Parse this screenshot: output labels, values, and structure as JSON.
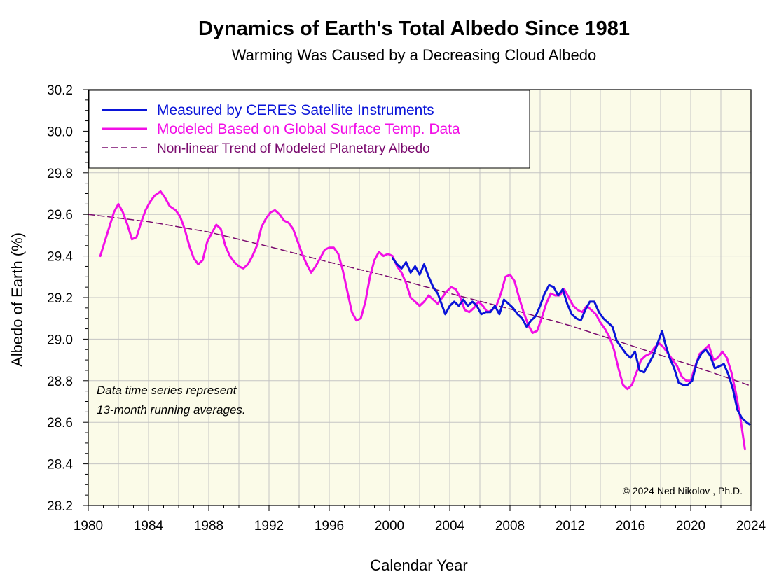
{
  "chart_data": {
    "type": "line",
    "title": "Dynamics of Earth's Total Albedo Since 1981",
    "subtitle": "Warming Was Caused by a Decreasing Cloud Albedo",
    "xlabel": "Calendar Year",
    "ylabel": "Albedo of Earth (%)",
    "xlim": [
      1980,
      2024
    ],
    "ylim": [
      28.2,
      30.2
    ],
    "x_ticks": [
      1980,
      1984,
      1988,
      1992,
      1996,
      2000,
      2004,
      2008,
      2012,
      2016,
      2020,
      2024
    ],
    "y_ticks": [
      "28.2",
      "28.4",
      "28.6",
      "28.8",
      "29.0",
      "29.2",
      "29.4",
      "29.6",
      "29.8",
      "30.0",
      "30.2"
    ],
    "grid": true,
    "legend_position": "top-left",
    "background_color": "#fbfbe8",
    "series": [
      {
        "name": "Measured by CERES Satellite Instruments",
        "color": "#0a14d8",
        "style": "solid",
        "points": [
          [
            2000.2,
            29.39
          ],
          [
            2000.5,
            29.36
          ],
          [
            2000.8,
            29.34
          ],
          [
            2001.1,
            29.37
          ],
          [
            2001.4,
            29.32
          ],
          [
            2001.7,
            29.35
          ],
          [
            2002.0,
            29.31
          ],
          [
            2002.3,
            29.36
          ],
          [
            2002.6,
            29.3
          ],
          [
            2002.9,
            29.25
          ],
          [
            2003.2,
            29.22
          ],
          [
            2003.5,
            29.16
          ],
          [
            2003.7,
            29.12
          ],
          [
            2004.0,
            29.16
          ],
          [
            2004.3,
            29.18
          ],
          [
            2004.6,
            29.16
          ],
          [
            2004.9,
            29.19
          ],
          [
            2005.2,
            29.16
          ],
          [
            2005.5,
            29.18
          ],
          [
            2005.8,
            29.16
          ],
          [
            2006.1,
            29.12
          ],
          [
            2006.4,
            29.13
          ],
          [
            2006.7,
            29.13
          ],
          [
            2007.0,
            29.16
          ],
          [
            2007.3,
            29.12
          ],
          [
            2007.6,
            29.19
          ],
          [
            2007.9,
            29.17
          ],
          [
            2008.2,
            29.15
          ],
          [
            2008.5,
            29.12
          ],
          [
            2008.8,
            29.1
          ],
          [
            2009.1,
            29.06
          ],
          [
            2009.4,
            29.09
          ],
          [
            2009.7,
            29.11
          ],
          [
            2010.0,
            29.16
          ],
          [
            2010.3,
            29.22
          ],
          [
            2010.6,
            29.26
          ],
          [
            2010.9,
            29.25
          ],
          [
            2011.2,
            29.21
          ],
          [
            2011.5,
            29.24
          ],
          [
            2011.8,
            29.17
          ],
          [
            2012.1,
            29.12
          ],
          [
            2012.4,
            29.1
          ],
          [
            2012.7,
            29.09
          ],
          [
            2013.0,
            29.14
          ],
          [
            2013.3,
            29.18
          ],
          [
            2013.6,
            29.18
          ],
          [
            2013.9,
            29.13
          ],
          [
            2014.2,
            29.1
          ],
          [
            2014.5,
            29.08
          ],
          [
            2014.8,
            29.06
          ],
          [
            2015.1,
            28.99
          ],
          [
            2015.4,
            28.96
          ],
          [
            2015.7,
            28.93
          ],
          [
            2016.0,
            28.91
          ],
          [
            2016.3,
            28.94
          ],
          [
            2016.6,
            28.85
          ],
          [
            2016.9,
            28.84
          ],
          [
            2017.2,
            28.88
          ],
          [
            2017.5,
            28.92
          ],
          [
            2017.8,
            28.98
          ],
          [
            2018.1,
            29.04
          ],
          [
            2018.3,
            28.98
          ],
          [
            2018.6,
            28.91
          ],
          [
            2018.9,
            28.86
          ],
          [
            2019.2,
            28.79
          ],
          [
            2019.5,
            28.78
          ],
          [
            2019.8,
            28.78
          ],
          [
            2020.1,
            28.8
          ],
          [
            2020.4,
            28.89
          ],
          [
            2020.7,
            28.93
          ],
          [
            2021.0,
            28.95
          ],
          [
            2021.3,
            28.92
          ],
          [
            2021.6,
            28.86
          ],
          [
            2021.9,
            28.87
          ],
          [
            2022.2,
            28.88
          ],
          [
            2022.5,
            28.83
          ],
          [
            2022.8,
            28.76
          ],
          [
            2023.1,
            28.66
          ],
          [
            2023.4,
            28.62
          ],
          [
            2023.7,
            28.6
          ],
          [
            2023.9,
            28.59
          ]
        ]
      },
      {
        "name": "Modeled Based on Global Surface Temp. Data",
        "color": "#f20fe6",
        "style": "solid",
        "points": [
          [
            1980.8,
            29.4
          ],
          [
            1981.1,
            29.47
          ],
          [
            1981.4,
            29.54
          ],
          [
            1981.7,
            29.61
          ],
          [
            1982.0,
            29.65
          ],
          [
            1982.3,
            29.61
          ],
          [
            1982.6,
            29.55
          ],
          [
            1982.9,
            29.48
          ],
          [
            1983.2,
            29.49
          ],
          [
            1983.5,
            29.56
          ],
          [
            1983.8,
            29.62
          ],
          [
            1984.1,
            29.66
          ],
          [
            1984.4,
            29.69
          ],
          [
            1984.8,
            29.71
          ],
          [
            1985.1,
            29.68
          ],
          [
            1985.4,
            29.64
          ],
          [
            1985.8,
            29.62
          ],
          [
            1986.1,
            29.59
          ],
          [
            1986.4,
            29.53
          ],
          [
            1986.7,
            29.45
          ],
          [
            1987.0,
            29.39
          ],
          [
            1987.3,
            29.36
          ],
          [
            1987.6,
            29.38
          ],
          [
            1987.9,
            29.47
          ],
          [
            1988.2,
            29.51
          ],
          [
            1988.5,
            29.55
          ],
          [
            1988.8,
            29.53
          ],
          [
            1989.1,
            29.45
          ],
          [
            1989.4,
            29.4
          ],
          [
            1989.7,
            29.37
          ],
          [
            1990.0,
            29.35
          ],
          [
            1990.3,
            29.34
          ],
          [
            1990.6,
            29.36
          ],
          [
            1990.9,
            29.4
          ],
          [
            1991.2,
            29.45
          ],
          [
            1991.5,
            29.54
          ],
          [
            1991.8,
            29.58
          ],
          [
            1992.1,
            29.61
          ],
          [
            1992.4,
            29.62
          ],
          [
            1992.7,
            29.6
          ],
          [
            1993.0,
            29.57
          ],
          [
            1993.3,
            29.56
          ],
          [
            1993.6,
            29.53
          ],
          [
            1993.9,
            29.47
          ],
          [
            1994.2,
            29.41
          ],
          [
            1994.5,
            29.36
          ],
          [
            1994.8,
            29.32
          ],
          [
            1995.1,
            29.35
          ],
          [
            1995.4,
            29.39
          ],
          [
            1995.7,
            29.43
          ],
          [
            1996.0,
            29.44
          ],
          [
            1996.3,
            29.44
          ],
          [
            1996.6,
            29.41
          ],
          [
            1996.9,
            29.33
          ],
          [
            1997.2,
            29.23
          ],
          [
            1997.5,
            29.13
          ],
          [
            1997.8,
            29.09
          ],
          [
            1998.1,
            29.1
          ],
          [
            1998.4,
            29.18
          ],
          [
            1998.7,
            29.3
          ],
          [
            1999.0,
            29.38
          ],
          [
            1999.3,
            29.42
          ],
          [
            1999.6,
            29.4
          ],
          [
            1999.9,
            29.41
          ],
          [
            2000.2,
            29.4
          ],
          [
            2000.5,
            29.35
          ],
          [
            2000.8,
            29.32
          ],
          [
            2001.1,
            29.27
          ],
          [
            2001.4,
            29.2
          ],
          [
            2001.7,
            29.18
          ],
          [
            2002.0,
            29.16
          ],
          [
            2002.3,
            29.18
          ],
          [
            2002.6,
            29.21
          ],
          [
            2002.9,
            29.19
          ],
          [
            2003.2,
            29.17
          ],
          [
            2003.5,
            29.2
          ],
          [
            2003.8,
            29.23
          ],
          [
            2004.1,
            29.25
          ],
          [
            2004.4,
            29.24
          ],
          [
            2004.7,
            29.2
          ],
          [
            2005.0,
            29.14
          ],
          [
            2005.3,
            29.13
          ],
          [
            2005.6,
            29.15
          ],
          [
            2005.9,
            29.18
          ],
          [
            2006.2,
            29.16
          ],
          [
            2006.5,
            29.13
          ],
          [
            2006.8,
            29.14
          ],
          [
            2007.1,
            29.16
          ],
          [
            2007.4,
            29.22
          ],
          [
            2007.7,
            29.3
          ],
          [
            2008.0,
            29.31
          ],
          [
            2008.3,
            29.28
          ],
          [
            2008.6,
            29.2
          ],
          [
            2008.9,
            29.13
          ],
          [
            2009.2,
            29.07
          ],
          [
            2009.5,
            29.03
          ],
          [
            2009.8,
            29.04
          ],
          [
            2010.1,
            29.1
          ],
          [
            2010.4,
            29.17
          ],
          [
            2010.7,
            29.22
          ],
          [
            2011.0,
            29.21
          ],
          [
            2011.3,
            29.21
          ],
          [
            2011.6,
            29.24
          ],
          [
            2011.9,
            29.2
          ],
          [
            2012.2,
            29.16
          ],
          [
            2012.5,
            29.14
          ],
          [
            2012.8,
            29.13
          ],
          [
            2013.1,
            29.16
          ],
          [
            2013.4,
            29.14
          ],
          [
            2013.7,
            29.12
          ],
          [
            2014.0,
            29.08
          ],
          [
            2014.3,
            29.05
          ],
          [
            2014.6,
            29.01
          ],
          [
            2014.9,
            28.95
          ],
          [
            2015.2,
            28.86
          ],
          [
            2015.5,
            28.78
          ],
          [
            2015.8,
            28.76
          ],
          [
            2016.1,
            28.78
          ],
          [
            2016.4,
            28.84
          ],
          [
            2016.7,
            28.9
          ],
          [
            2017.0,
            28.92
          ],
          [
            2017.3,
            28.93
          ],
          [
            2017.6,
            28.96
          ],
          [
            2017.9,
            28.98
          ],
          [
            2018.2,
            28.96
          ],
          [
            2018.5,
            28.93
          ],
          [
            2018.8,
            28.9
          ],
          [
            2019.1,
            28.87
          ],
          [
            2019.4,
            28.82
          ],
          [
            2019.7,
            28.8
          ],
          [
            2020.0,
            28.8
          ],
          [
            2020.3,
            28.87
          ],
          [
            2020.6,
            28.93
          ],
          [
            2020.9,
            28.95
          ],
          [
            2021.2,
            28.97
          ],
          [
            2021.5,
            28.9
          ],
          [
            2021.8,
            28.91
          ],
          [
            2022.1,
            28.94
          ],
          [
            2022.4,
            28.91
          ],
          [
            2022.7,
            28.84
          ],
          [
            2023.0,
            28.74
          ],
          [
            2023.3,
            28.62
          ],
          [
            2023.6,
            28.47
          ]
        ]
      },
      {
        "name": "Non-linear Trend of Modeled Planetary Albedo",
        "color": "#7a0a6e",
        "style": "dashed",
        "points": [
          [
            1980,
            29.6
          ],
          [
            1984,
            29.565
          ],
          [
            1988,
            29.515
          ],
          [
            1992,
            29.445
          ],
          [
            1996,
            29.37
          ],
          [
            2000,
            29.3
          ],
          [
            2004,
            29.22
          ],
          [
            2008,
            29.145
          ],
          [
            2012,
            29.065
          ],
          [
            2016,
            28.97
          ],
          [
            2020,
            28.875
          ],
          [
            2024,
            28.775
          ]
        ]
      }
    ],
    "annotations": [
      "Data time series represent",
      "13-month running averages.",
      "© 2024 Ned Nikolov , Ph.D."
    ]
  }
}
